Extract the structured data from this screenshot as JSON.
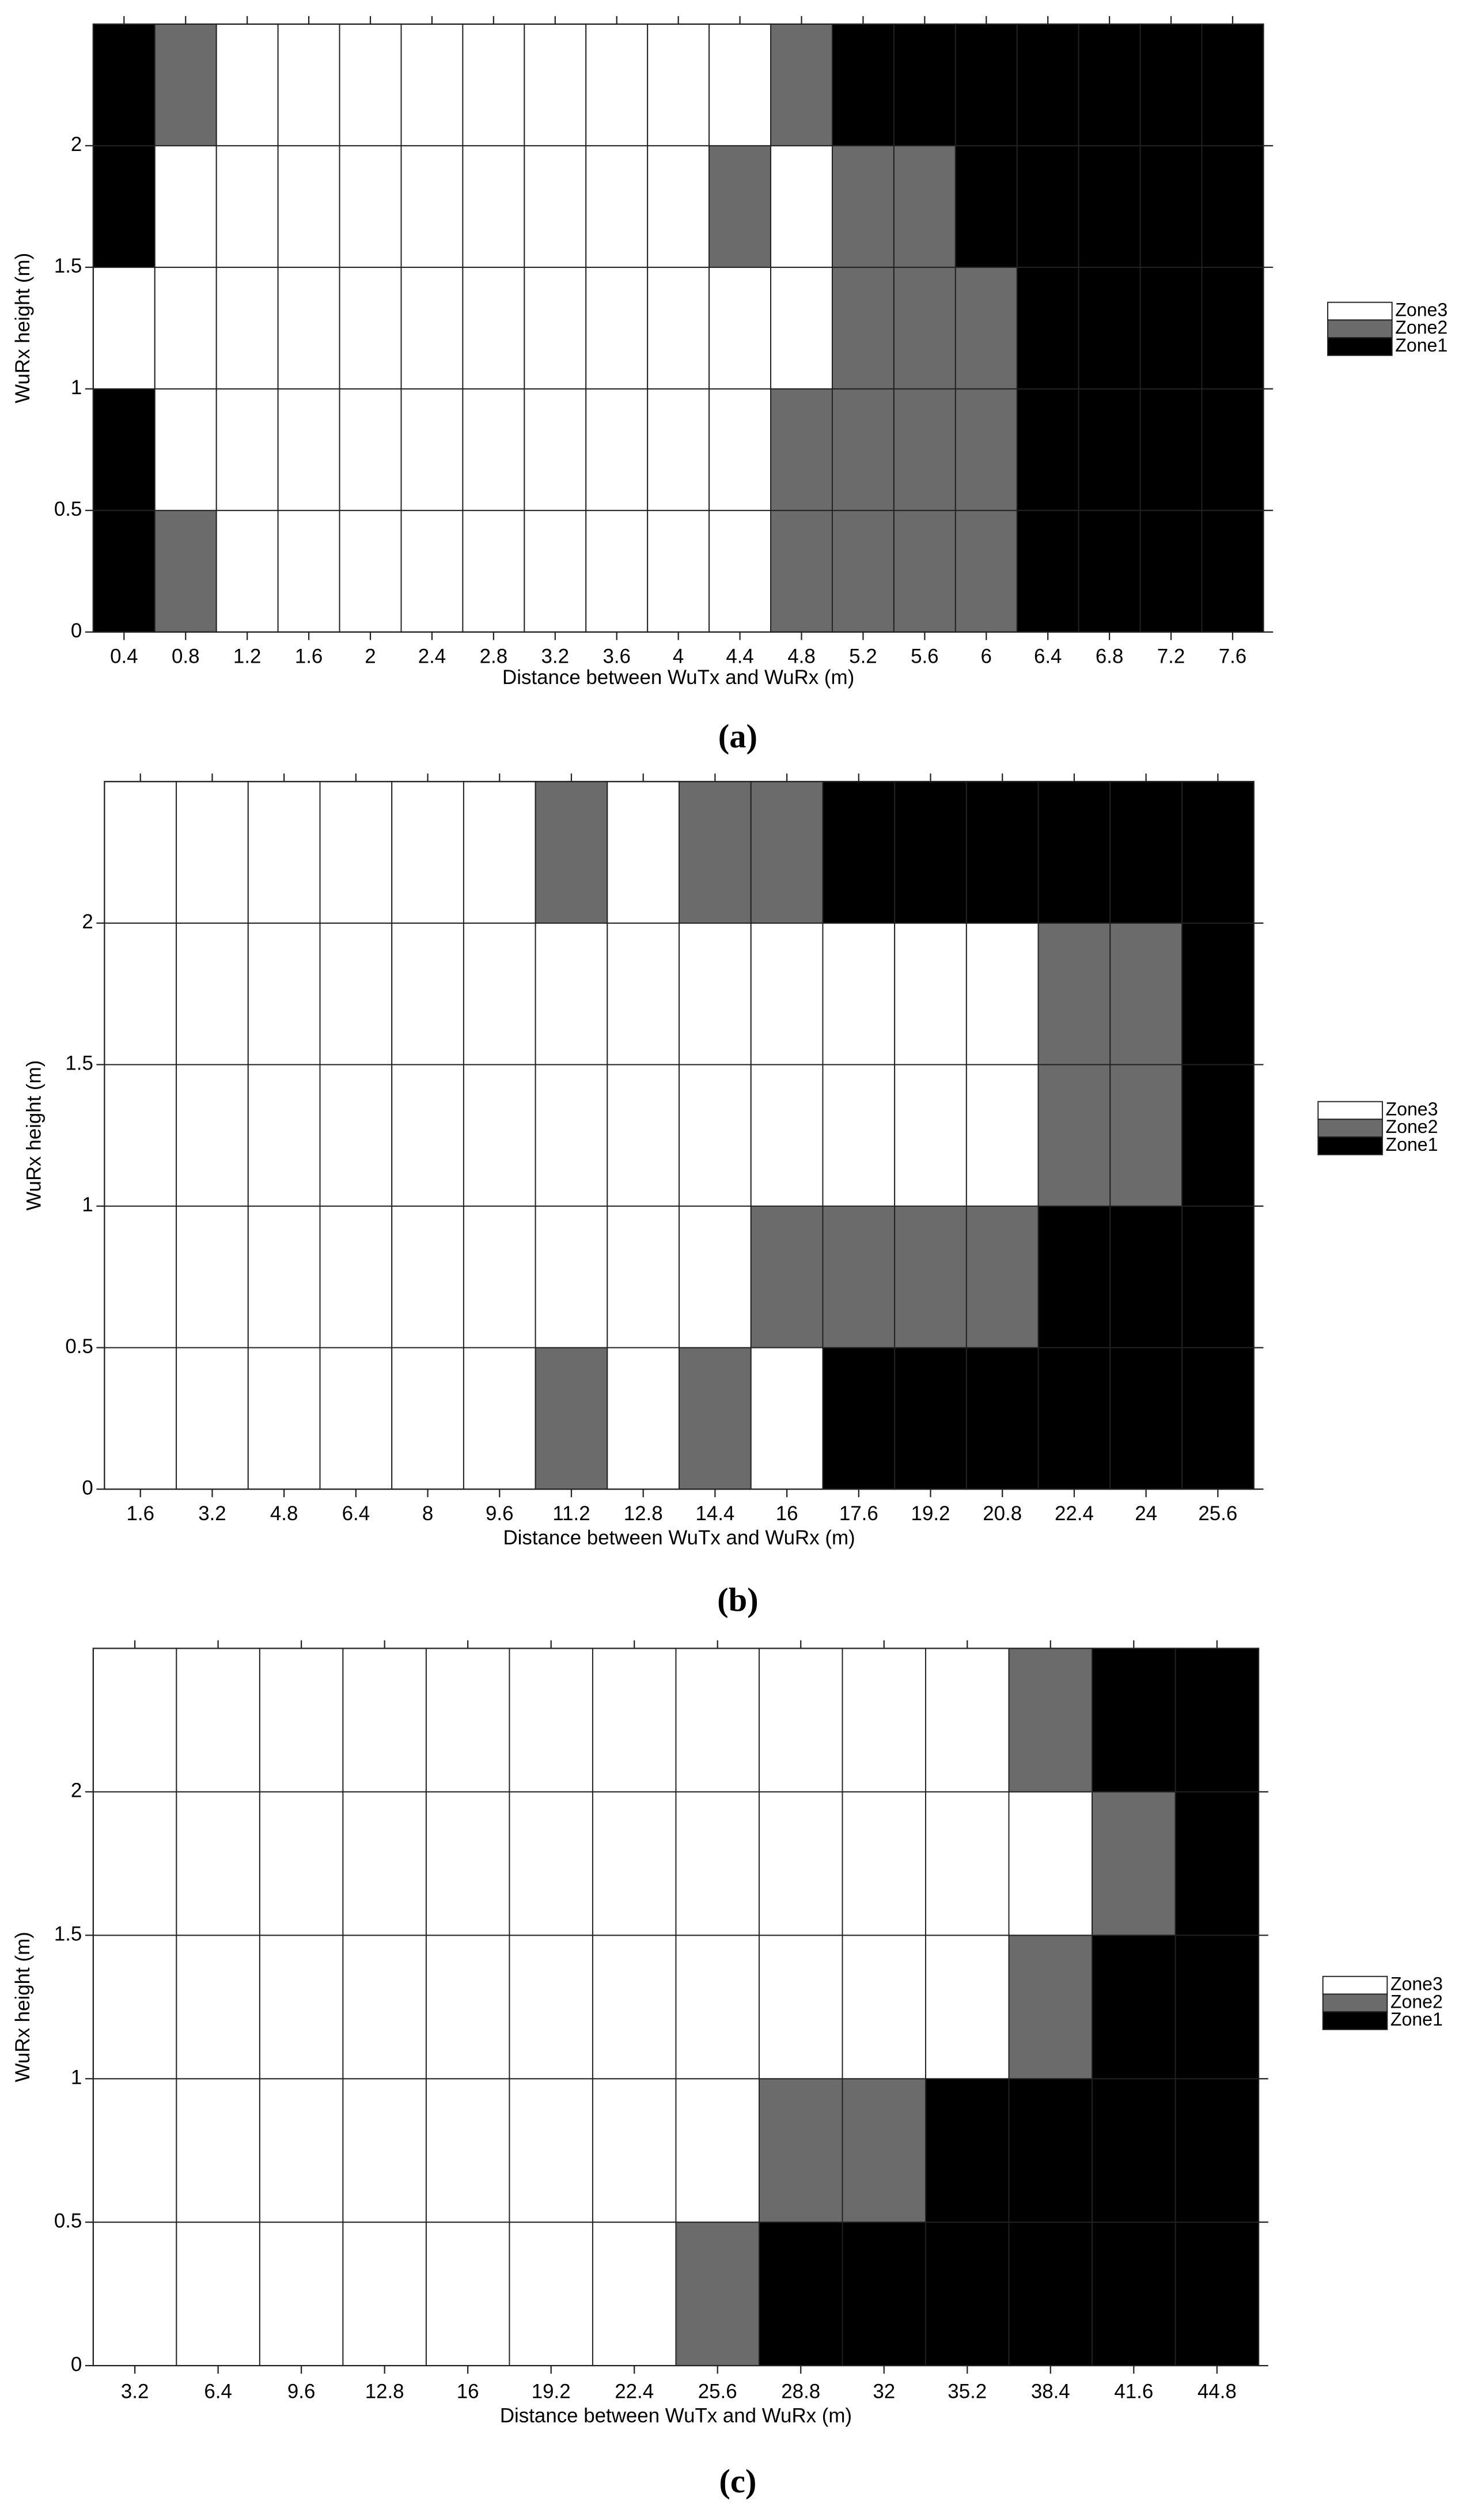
{
  "chart_data": [
    {
      "type": "heatmap",
      "caption": "(a)",
      "x_label": "Distance between WuTx and WuRx (m)",
      "y_label": "WuRx height (m)",
      "categories": [
        0.4,
        0.8,
        1.2,
        1.6,
        2,
        2.4,
        2.8,
        3.2,
        3.6,
        4,
        4.4,
        4.8,
        5.2,
        5.6,
        6,
        6.4,
        6.8,
        7.2,
        7.6
      ],
      "y_bins": [
        0,
        0.5,
        1,
        1.5,
        2,
        2.5
      ],
      "ylim": [
        0,
        2.5
      ],
      "yticks": [
        0,
        0.5,
        1,
        1.5,
        2
      ],
      "legend": [
        {
          "name": "Zone3",
          "value": 3,
          "color": "#ffffff"
        },
        {
          "name": "Zone2",
          "value": 2,
          "color": "#6b6b6b"
        },
        {
          "name": "Zone1",
          "value": 1,
          "color": "#000000"
        }
      ],
      "values": [
        [
          1,
          2,
          3,
          3,
          3,
          3,
          3,
          3,
          3,
          3,
          3,
          2,
          2,
          2,
          2,
          1,
          1,
          1,
          1
        ],
        [
          1,
          3,
          3,
          3,
          3,
          3,
          3,
          3,
          3,
          3,
          3,
          2,
          2,
          2,
          2,
          1,
          1,
          1,
          1
        ],
        [
          3,
          3,
          3,
          3,
          3,
          3,
          3,
          3,
          3,
          3,
          3,
          3,
          2,
          2,
          2,
          1,
          1,
          1,
          1
        ],
        [
          1,
          3,
          3,
          3,
          3,
          3,
          3,
          3,
          3,
          3,
          2,
          3,
          2,
          2,
          1,
          1,
          1,
          1,
          1
        ],
        [
          1,
          2,
          3,
          3,
          3,
          3,
          3,
          3,
          3,
          3,
          3,
          2,
          1,
          1,
          1,
          1,
          1,
          1,
          1
        ]
      ]
    },
    {
      "type": "heatmap",
      "caption": "(b)",
      "x_label": "Distance between WuTx and WuRx (m)",
      "y_label": "WuRx height (m)",
      "categories": [
        1.6,
        3.2,
        4.8,
        6.4,
        8,
        9.6,
        11.2,
        12.8,
        14.4,
        16,
        17.6,
        19.2,
        20.8,
        22.4,
        24,
        25.6
      ],
      "y_bins": [
        0,
        0.5,
        1,
        1.5,
        2,
        2.5
      ],
      "ylim": [
        0,
        2.5
      ],
      "yticks": [
        0,
        0.5,
        1,
        1.5,
        2
      ],
      "legend": [
        {
          "name": "Zone3",
          "value": 3,
          "color": "#ffffff"
        },
        {
          "name": "Zone2",
          "value": 2,
          "color": "#6b6b6b"
        },
        {
          "name": "Zone1",
          "value": 1,
          "color": "#000000"
        }
      ],
      "values": [
        [
          3,
          3,
          3,
          3,
          3,
          3,
          2,
          3,
          2,
          3,
          1,
          1,
          1,
          1,
          1,
          1
        ],
        [
          3,
          3,
          3,
          3,
          3,
          3,
          3,
          3,
          3,
          2,
          2,
          2,
          2,
          1,
          1,
          1
        ],
        [
          3,
          3,
          3,
          3,
          3,
          3,
          3,
          3,
          3,
          3,
          3,
          3,
          3,
          2,
          2,
          1
        ],
        [
          3,
          3,
          3,
          3,
          3,
          3,
          3,
          3,
          3,
          3,
          3,
          3,
          3,
          2,
          2,
          1
        ],
        [
          3,
          3,
          3,
          3,
          3,
          3,
          2,
          3,
          2,
          2,
          1,
          1,
          1,
          1,
          1,
          1
        ]
      ]
    },
    {
      "type": "heatmap",
      "caption": "(c)",
      "x_label": "Distance between WuTx and WuRx (m)",
      "y_label": "WuRx height (m)",
      "categories": [
        3.2,
        6.4,
        9.6,
        12.8,
        16,
        19.2,
        22.4,
        25.6,
        28.8,
        32,
        35.2,
        38.4,
        41.6,
        44.8
      ],
      "y_bins": [
        0,
        0.5,
        1,
        1.5,
        2,
        2.5
      ],
      "ylim": [
        0,
        2.5
      ],
      "yticks": [
        0,
        0.5,
        1,
        1.5,
        2
      ],
      "legend": [
        {
          "name": "Zone3",
          "value": 3,
          "color": "#ffffff"
        },
        {
          "name": "Zone2",
          "value": 2,
          "color": "#6b6b6b"
        },
        {
          "name": "Zone1",
          "value": 1,
          "color": "#000000"
        }
      ],
      "values": [
        [
          3,
          3,
          3,
          3,
          3,
          3,
          3,
          2,
          1,
          1,
          1,
          1,
          1,
          1
        ],
        [
          3,
          3,
          3,
          3,
          3,
          3,
          3,
          3,
          2,
          2,
          1,
          1,
          1,
          1
        ],
        [
          3,
          3,
          3,
          3,
          3,
          3,
          3,
          3,
          3,
          3,
          3,
          2,
          1,
          1
        ],
        [
          3,
          3,
          3,
          3,
          3,
          3,
          3,
          3,
          3,
          3,
          3,
          3,
          2,
          1
        ],
        [
          3,
          3,
          3,
          3,
          3,
          3,
          3,
          3,
          3,
          3,
          3,
          2,
          1,
          1
        ]
      ]
    }
  ]
}
